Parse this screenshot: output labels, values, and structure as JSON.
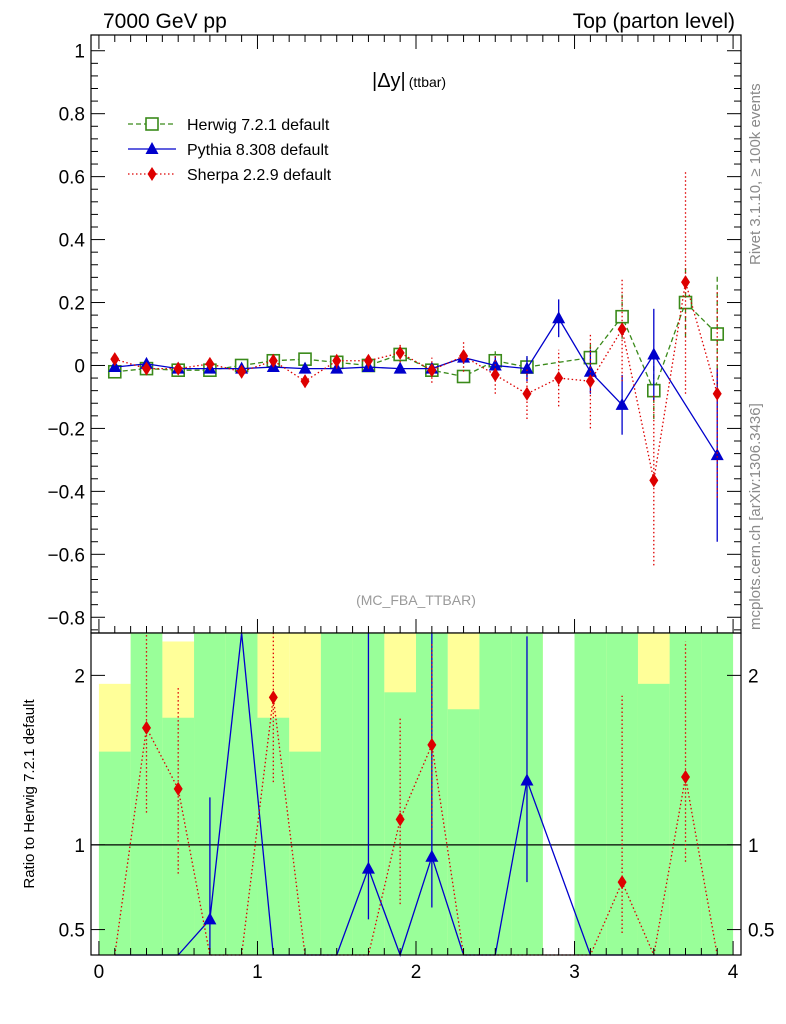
{
  "header": {
    "left": "7000 GeV pp",
    "right": "Top (parton level)"
  },
  "side_labels": {
    "rivet": "Rivet 3.1.10, ≥ 100k events",
    "mcplots": "mcplots.cern.ch [arXiv:1306.3436]"
  },
  "chart_data": [
    {
      "type": "scatter",
      "title": "|Δy|",
      "title_suffix": "(ttbar)",
      "watermark": "(MC_FBA_TTBAR)",
      "ylim": [
        -0.85,
        1.05
      ],
      "xlim": [
        -0.05,
        4.05
      ],
      "y_ticks": [
        "1",
        "0.8",
        "0.6",
        "0.4",
        "0.2",
        "0",
        "−0.2",
        "−0.4",
        "−0.6",
        "−0.8"
      ],
      "y_tick_values": [
        1,
        0.8,
        0.6,
        0.4,
        0.2,
        0,
        -0.2,
        -0.4,
        -0.6,
        -0.8
      ],
      "legend_position": "top-left",
      "x": [
        0.1,
        0.3,
        0.5,
        0.7,
        0.9,
        1.1,
        1.3,
        1.5,
        1.7,
        1.9,
        2.1,
        2.3,
        2.5,
        2.7,
        2.9,
        3.1,
        3.3,
        3.5,
        3.7,
        3.9
      ],
      "series": [
        {
          "name": "Herwig 7.2.1 default",
          "color": "#3a8a1a",
          "marker": "open-square",
          "line": "dashed",
          "values": [
            -0.02,
            -0.01,
            -0.015,
            -0.015,
            0.0,
            0.015,
            0.02,
            0.01,
            0.0,
            0.035,
            -0.015,
            -0.035,
            0.015,
            -0.005,
            null,
            0.025,
            0.155,
            -0.08,
            0.2,
            0.1
          ],
          "errors": [
            0.01,
            0.01,
            0.01,
            0.01,
            0.01,
            0.015,
            0.015,
            0.015,
            0.015,
            0.02,
            0.02,
            0.02,
            0.03,
            0.03,
            null,
            0.05,
            0.07,
            0.09,
            0.11,
            0.19
          ]
        },
        {
          "name": "Pythia 8.308 default",
          "color": "#0000cc",
          "marker": "filled-triangle",
          "line": "solid",
          "values": [
            -0.005,
            0.005,
            -0.01,
            -0.01,
            -0.01,
            -0.005,
            -0.01,
            -0.01,
            -0.005,
            -0.01,
            -0.01,
            0.025,
            0.0,
            -0.01,
            0.15,
            -0.02,
            -0.125,
            0.035,
            null,
            -0.285
          ],
          "errors": [
            0.01,
            0.01,
            0.01,
            0.01,
            0.01,
            0.01,
            0.01,
            0.015,
            0.015,
            0.015,
            0.015,
            0.02,
            0.03,
            0.04,
            0.06,
            0.07,
            0.095,
            0.145,
            null,
            0.275
          ]
        },
        {
          "name": "Sherpa 2.2.9 default",
          "color": "#dd0000",
          "marker": "filled-diamond",
          "line": "dotted",
          "values": [
            0.02,
            -0.01,
            -0.01,
            0.005,
            -0.02,
            0.015,
            -0.05,
            0.015,
            0.015,
            0.04,
            -0.015,
            0.03,
            -0.03,
            -0.09,
            -0.04,
            -0.05,
            0.115,
            -0.365,
            0.265,
            -0.09
          ],
          "errors": [
            0.01,
            0.01,
            0.01,
            0.015,
            0.02,
            0.02,
            0.02,
            0.025,
            0.025,
            0.03,
            0.04,
            0.05,
            0.06,
            0.08,
            0.09,
            0.15,
            0.165,
            0.27,
            0.355,
            0.33
          ]
        }
      ]
    },
    {
      "type": "scatter",
      "ylabel": "Ratio to Herwig 7.2.1 default",
      "ylim": [
        0.35,
        2.25
      ],
      "xlim": [
        -0.05,
        4.05
      ],
      "y_ticks": [
        "2",
        "1",
        "0.5"
      ],
      "y_tick_values": [
        2,
        1,
        0.5
      ],
      "x_ticks": [
        "0",
        "1",
        "2",
        "3",
        "4"
      ],
      "x_tick_values": [
        0,
        1,
        2,
        3,
        4
      ],
      "reference_line": 1,
      "band_edges": [
        0.0,
        0.2,
        0.4,
        0.6,
        0.8,
        1.0,
        1.2,
        1.4,
        1.6,
        1.8,
        2.0,
        2.2,
        2.4,
        2.6,
        2.8,
        3.0,
        3.2,
        3.4,
        3.6,
        3.8,
        4.0
      ],
      "band_inner": [
        [
          0.35,
          1.55
        ],
        [
          0.35,
          2.25
        ],
        [
          0.35,
          1.75
        ],
        [
          0.35,
          2.25
        ],
        [
          0.35,
          2.25
        ],
        [
          0.35,
          1.75
        ],
        [
          0.35,
          1.55
        ],
        [
          0.35,
          2.25
        ],
        [
          0.35,
          2.25
        ],
        [
          0.35,
          1.9
        ],
        [
          0.35,
          2.25
        ],
        [
          0.35,
          1.8
        ],
        [
          0.35,
          2.25
        ],
        [
          0.35,
          2.25
        ],
        null,
        [
          0.35,
          2.25
        ],
        [
          0.35,
          2.25
        ],
        [
          0.35,
          1.95
        ],
        [
          0.35,
          2.25
        ],
        [
          0.35,
          2.25
        ]
      ],
      "band_outer": [
        [
          0.35,
          1.95
        ],
        [
          0.35,
          2.25
        ],
        [
          0.35,
          2.2
        ],
        [
          0.35,
          2.25
        ],
        [
          0.35,
          2.25
        ],
        [
          0.35,
          2.25
        ],
        [
          0.35,
          2.25
        ],
        [
          0.35,
          2.25
        ],
        [
          0.35,
          2.25
        ],
        [
          0.35,
          2.25
        ],
        [
          0.35,
          2.25
        ],
        [
          0.35,
          2.25
        ],
        [
          0.35,
          2.25
        ],
        [
          0.35,
          2.25
        ],
        null,
        [
          0.35,
          2.25
        ],
        [
          0.35,
          2.25
        ],
        [
          0.35,
          2.25
        ],
        [
          0.35,
          2.25
        ],
        [
          0.35,
          2.25
        ]
      ],
      "ratio_series": [
        {
          "name": "Pythia 8.308 default",
          "color": "#0000cc",
          "marker": "filled-triangle",
          "line": "solid",
          "values": [
            0.25,
            0.2,
            0.25,
            0.56,
            3.0,
            0.25,
            0.25,
            0.25,
            0.86,
            0.25,
            0.93,
            0.25,
            0.2,
            1.38,
            null,
            0.2,
            0.2,
            0.2,
            null,
            0.2
          ],
          "err_lo": [
            0,
            0,
            0,
            0.3,
            0,
            0,
            0,
            0,
            0.3,
            0,
            0.3,
            0,
            0,
            0.6,
            null,
            0,
            0,
            0,
            null,
            0
          ],
          "err_hi": [
            0,
            0,
            0,
            0.72,
            0,
            0,
            0,
            0,
            1.4,
            0,
            1.4,
            0,
            0,
            0.85,
            null,
            0,
            0,
            0,
            null,
            0
          ]
        },
        {
          "name": "Sherpa 2.2.9 default",
          "color": "#dd0000",
          "marker": "filled-diamond",
          "line": "dotted",
          "values": [
            0.25,
            1.69,
            1.33,
            0.25,
            0.25,
            1.87,
            0.25,
            0.25,
            0.25,
            1.15,
            1.59,
            0.25,
            0.25,
            0.25,
            null,
            0.25,
            0.78,
            0.25,
            1.4,
            0.25
          ],
          "err_lo": [
            0,
            0.5,
            0.5,
            0,
            0,
            0.5,
            0,
            0,
            0,
            0.5,
            0.5,
            0,
            0,
            0,
            null,
            0,
            0.3,
            0,
            0.5,
            0
          ],
          "err_hi": [
            0,
            0.6,
            0.6,
            0,
            0,
            0.6,
            0,
            0,
            0,
            0.6,
            0.6,
            0,
            0,
            0,
            null,
            0,
            1.1,
            0,
            0.8,
            0
          ]
        }
      ]
    }
  ]
}
